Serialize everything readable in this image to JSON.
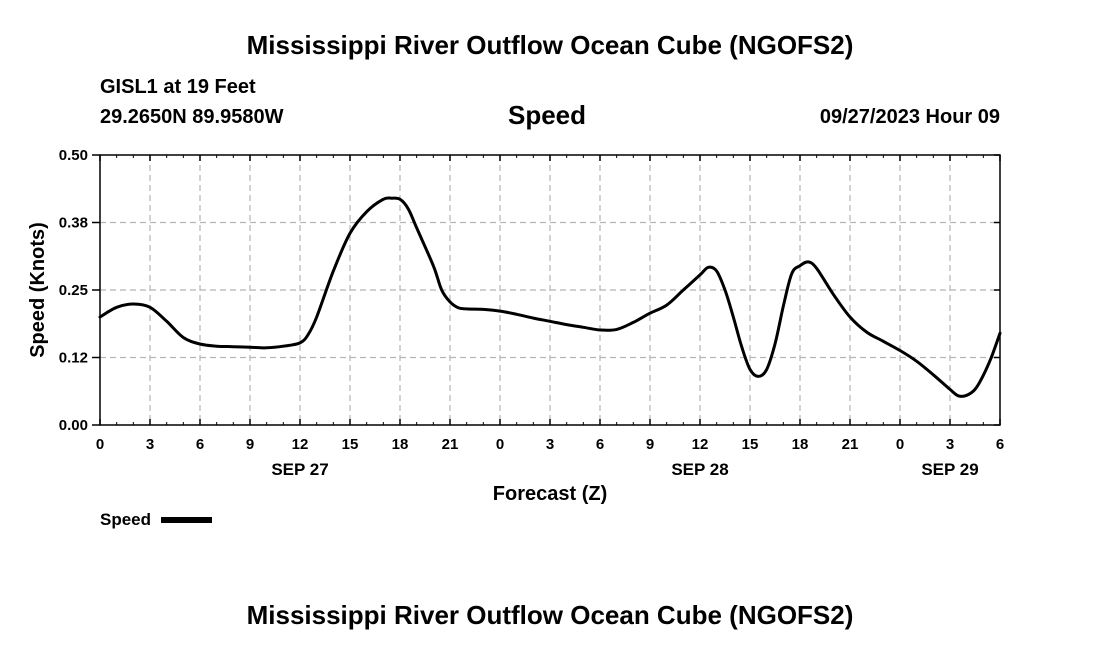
{
  "page": {
    "title_top": "Mississippi River Outflow Ocean Cube (NGOFS2)",
    "title_bottom": "Mississippi River Outflow Ocean Cube (NGOFS2)",
    "station": "GISL1 at 19 Feet",
    "location": "29.2650N  89.9580W",
    "datetime": "09/27/2023 Hour 09"
  },
  "chart_data": {
    "type": "line",
    "title": "Speed",
    "xlabel": "Forecast (Z)",
    "ylabel": "Speed (Knots)",
    "x_range_hours": [
      0,
      54
    ],
    "ylim": [
      0,
      0.5
    ],
    "y_ticks": [
      0.0,
      0.125,
      0.25,
      0.375,
      0.5
    ],
    "y_tick_labels": [
      "0.00",
      "0.12",
      "0.25",
      "0.38",
      "0.50"
    ],
    "x_ticks": [
      0,
      3,
      6,
      9,
      12,
      15,
      18,
      21,
      24,
      27,
      30,
      33,
      36,
      39,
      42,
      45,
      48,
      51,
      54
    ],
    "x_tick_labels": [
      "0",
      "3",
      "6",
      "9",
      "12",
      "15",
      "18",
      "21",
      "0",
      "3",
      "6",
      "9",
      "12",
      "15",
      "18",
      "21",
      "0",
      "3",
      "6"
    ],
    "date_labels": [
      {
        "text": "SEP 27",
        "hour": 12
      },
      {
        "text": "SEP 28",
        "hour": 36
      },
      {
        "text": "SEP 29",
        "hour": 51
      }
    ],
    "grid": true,
    "legend": {
      "label": "Speed",
      "placement": "bottom-left"
    },
    "series": [
      {
        "name": "Speed",
        "color": "#000000",
        "points": [
          [
            0,
            0.2
          ],
          [
            1,
            0.218
          ],
          [
            2,
            0.224
          ],
          [
            3,
            0.218
          ],
          [
            4,
            0.192
          ],
          [
            5,
            0.162
          ],
          [
            6,
            0.15
          ],
          [
            7,
            0.146
          ],
          [
            8,
            0.145
          ],
          [
            9,
            0.144
          ],
          [
            10,
            0.143
          ],
          [
            11,
            0.146
          ],
          [
            12,
            0.152
          ],
          [
            12.5,
            0.168
          ],
          [
            13,
            0.2
          ],
          [
            14,
            0.285
          ],
          [
            15,
            0.355
          ],
          [
            16,
            0.395
          ],
          [
            17,
            0.418
          ],
          [
            17.5,
            0.42
          ],
          [
            18,
            0.418
          ],
          [
            18.5,
            0.4
          ],
          [
            19,
            0.365
          ],
          [
            20,
            0.295
          ],
          [
            20.5,
            0.25
          ],
          [
            21,
            0.228
          ],
          [
            21.5,
            0.217
          ],
          [
            22,
            0.215
          ],
          [
            23,
            0.214
          ],
          [
            24,
            0.211
          ],
          [
            25,
            0.205
          ],
          [
            26,
            0.198
          ],
          [
            27,
            0.192
          ],
          [
            28,
            0.186
          ],
          [
            29,
            0.181
          ],
          [
            30,
            0.176
          ],
          [
            31,
            0.177
          ],
          [
            32,
            0.19
          ],
          [
            33,
            0.207
          ],
          [
            34,
            0.222
          ],
          [
            35,
            0.25
          ],
          [
            36,
            0.278
          ],
          [
            36.5,
            0.292
          ],
          [
            37,
            0.285
          ],
          [
            37.5,
            0.25
          ],
          [
            38,
            0.2
          ],
          [
            38.5,
            0.145
          ],
          [
            39,
            0.103
          ],
          [
            39.5,
            0.09
          ],
          [
            40,
            0.103
          ],
          [
            40.5,
            0.15
          ],
          [
            41,
            0.22
          ],
          [
            41.5,
            0.28
          ],
          [
            42,
            0.295
          ],
          [
            42.5,
            0.302
          ],
          [
            43,
            0.29
          ],
          [
            44,
            0.242
          ],
          [
            45,
            0.2
          ],
          [
            46,
            0.172
          ],
          [
            47,
            0.155
          ],
          [
            48,
            0.138
          ],
          [
            49,
            0.118
          ],
          [
            50,
            0.093
          ],
          [
            51,
            0.066
          ],
          [
            51.5,
            0.054
          ],
          [
            52,
            0.055
          ],
          [
            52.5,
            0.066
          ],
          [
            53,
            0.092
          ],
          [
            53.5,
            0.127
          ],
          [
            54,
            0.17
          ]
        ]
      }
    ]
  }
}
